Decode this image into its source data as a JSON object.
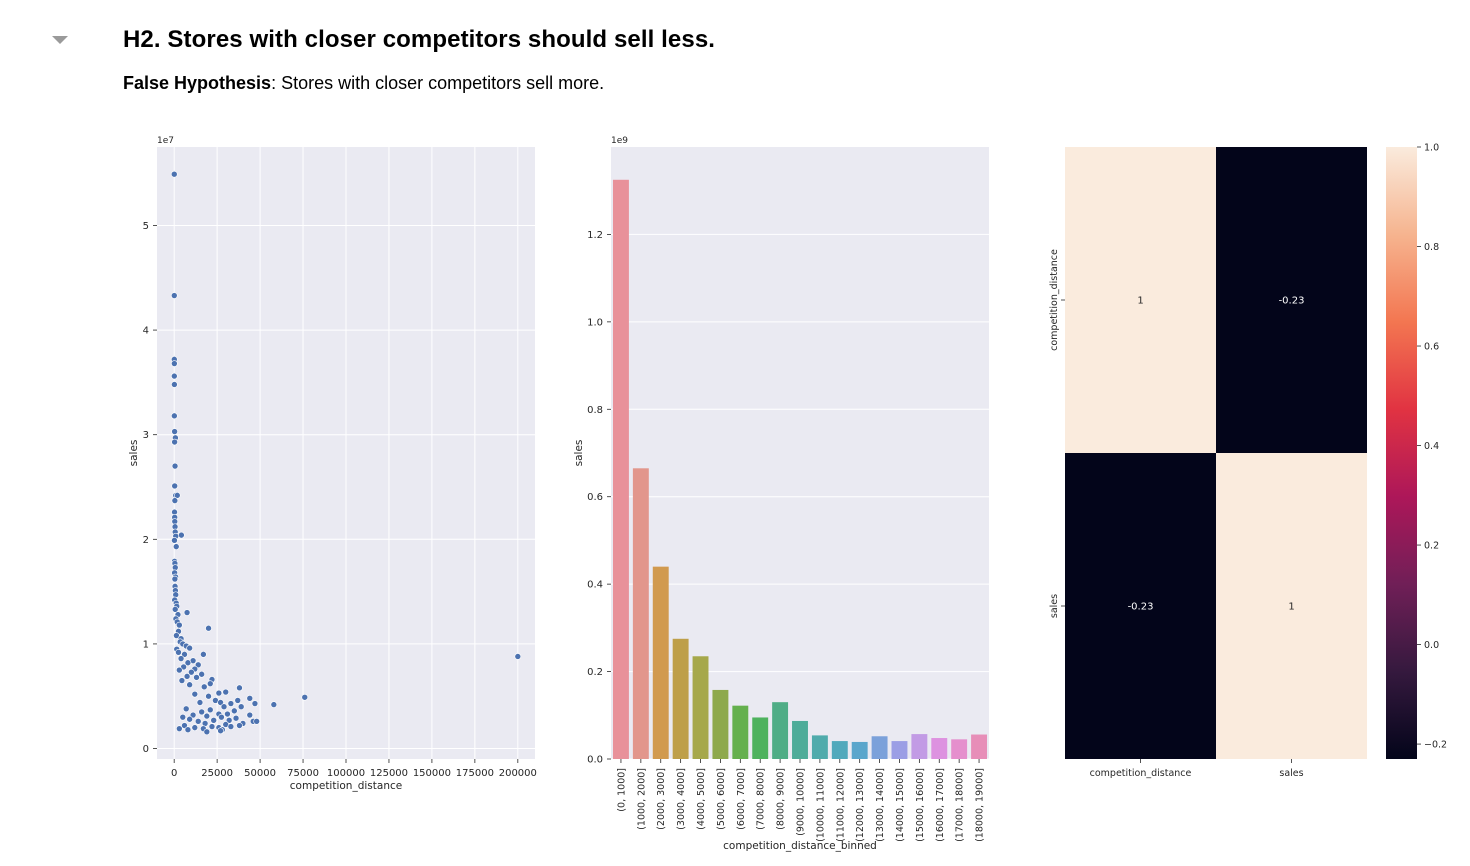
{
  "section": {
    "title": "H2. Stores with closer competitors should sell less.",
    "conclusion_label": "False Hypothesis",
    "conclusion_sep": ":",
    "conclusion_text": " Stores with closer competitors sell more."
  },
  "chart_data": [
    {
      "type": "scatter",
      "xlabel": "competition_distance",
      "ylabel": "sales",
      "y_offset_label": "1e7",
      "xlim": [
        -10000,
        210000
      ],
      "ylim": [
        -0.1,
        5.75
      ],
      "xticks": [
        0,
        25000,
        50000,
        75000,
        100000,
        125000,
        150000,
        175000,
        200000
      ],
      "xtick_labels": [
        "0",
        "25000",
        "50000",
        "75000",
        "100000",
        "125000",
        "150000",
        "175000",
        "200000"
      ],
      "yticks": [
        0,
        1,
        2,
        3,
        4,
        5
      ],
      "ytick_labels": [
        "0",
        "1",
        "2",
        "3",
        "4",
        "5"
      ],
      "grid": true,
      "marker_color": "#4c72b0",
      "points": [
        [
          50,
          5.49
        ],
        [
          60,
          4.33
        ],
        [
          70,
          3.72
        ],
        [
          100,
          3.68
        ],
        [
          80,
          3.56
        ],
        [
          120,
          3.48
        ],
        [
          100,
          3.18
        ],
        [
          250,
          3.03
        ],
        [
          700,
          2.97
        ],
        [
          250,
          2.93
        ],
        [
          500,
          2.7
        ],
        [
          300,
          2.51
        ],
        [
          900,
          2.42
        ],
        [
          1800,
          2.42
        ],
        [
          400,
          2.37
        ],
        [
          200,
          2.26
        ],
        [
          300,
          2.21
        ],
        [
          350,
          2.17
        ],
        [
          500,
          2.12
        ],
        [
          600,
          2.07
        ],
        [
          4200,
          2.04
        ],
        [
          900,
          2.03
        ],
        [
          150,
          1.99
        ],
        [
          1200,
          1.93
        ],
        [
          220,
          1.79
        ],
        [
          420,
          1.77
        ],
        [
          620,
          1.73
        ],
        [
          250,
          1.68
        ],
        [
          800,
          1.64
        ],
        [
          400,
          1.62
        ],
        [
          500,
          1.55
        ],
        [
          700,
          1.51
        ],
        [
          900,
          1.47
        ],
        [
          300,
          1.42
        ],
        [
          1200,
          1.39
        ],
        [
          1500,
          1.36
        ],
        [
          600,
          1.33
        ],
        [
          7500,
          1.3
        ],
        [
          2200,
          1.28
        ],
        [
          1000,
          1.24
        ],
        [
          1800,
          1.21
        ],
        [
          3000,
          1.18
        ],
        [
          20000,
          1.15
        ],
        [
          2500,
          1.12
        ],
        [
          1300,
          1.08
        ],
        [
          4000,
          1.05
        ],
        [
          3500,
          1.02
        ],
        [
          5000,
          1.0
        ],
        [
          7000,
          0.98
        ],
        [
          9000,
          0.96
        ],
        [
          1500,
          0.95
        ],
        [
          2500,
          0.92
        ],
        [
          6000,
          0.9
        ],
        [
          17000,
          0.9
        ],
        [
          200000,
          0.88
        ],
        [
          4000,
          0.86
        ],
        [
          11000,
          0.84
        ],
        [
          8000,
          0.82
        ],
        [
          14000,
          0.8
        ],
        [
          5500,
          0.78
        ],
        [
          12000,
          0.76
        ],
        [
          3000,
          0.75
        ],
        [
          10000,
          0.73
        ],
        [
          16000,
          0.71
        ],
        [
          7500,
          0.69
        ],
        [
          13000,
          0.68
        ],
        [
          22000,
          0.66
        ],
        [
          4500,
          0.65
        ],
        [
          21000,
          0.62
        ],
        [
          9000,
          0.61
        ],
        [
          17500,
          0.59
        ],
        [
          38000,
          0.58
        ],
        [
          30000,
          0.54
        ],
        [
          26000,
          0.53
        ],
        [
          12000,
          0.52
        ],
        [
          20000,
          0.5
        ],
        [
          76000,
          0.49
        ],
        [
          44000,
          0.48
        ],
        [
          37000,
          0.46
        ],
        [
          24000,
          0.46
        ],
        [
          15000,
          0.44
        ],
        [
          27000,
          0.44
        ],
        [
          33000,
          0.43
        ],
        [
          47000,
          0.43
        ],
        [
          58000,
          0.42
        ],
        [
          29000,
          0.4
        ],
        [
          39000,
          0.4
        ],
        [
          7000,
          0.38
        ],
        [
          21000,
          0.37
        ],
        [
          35000,
          0.36
        ],
        [
          16000,
          0.35
        ],
        [
          26000,
          0.33
        ],
        [
          31000,
          0.33
        ],
        [
          11000,
          0.32
        ],
        [
          44000,
          0.32
        ],
        [
          19000,
          0.31
        ],
        [
          5000,
          0.3
        ],
        [
          27500,
          0.3
        ],
        [
          36000,
          0.29
        ],
        [
          9000,
          0.28
        ],
        [
          23000,
          0.27
        ],
        [
          32000,
          0.27
        ],
        [
          46000,
          0.26
        ],
        [
          14000,
          0.26
        ],
        [
          48000,
          0.26
        ],
        [
          40000,
          0.24
        ],
        [
          18000,
          0.24
        ],
        [
          30000,
          0.23
        ],
        [
          6000,
          0.22
        ],
        [
          38000,
          0.22
        ],
        [
          22000,
          0.21
        ],
        [
          33000,
          0.21
        ],
        [
          12000,
          0.2
        ],
        [
          26000,
          0.2
        ],
        [
          3000,
          0.19
        ],
        [
          17000,
          0.19
        ],
        [
          28000,
          0.18
        ],
        [
          8000,
          0.18
        ],
        [
          19000,
          0.16
        ],
        [
          27000,
          0.17
        ]
      ]
    },
    {
      "type": "bar",
      "xlabel": "competition_distance_binned",
      "ylabel": "sales",
      "y_offset_label": "1e9",
      "ylim": [
        0,
        1.4
      ],
      "yticks": [
        0,
        0.2,
        0.4,
        0.6,
        0.8,
        1.0,
        1.2
      ],
      "ytick_labels": [
        "0.0",
        "0.2",
        "0.4",
        "0.6",
        "0.8",
        "1.0",
        "1.2"
      ],
      "grid": true,
      "categories": [
        "(0, 1000]",
        "(1000, 2000]",
        "(2000, 3000]",
        "(3000, 4000]",
        "(4000, 5000]",
        "(5000, 6000]",
        "(6000, 7000]",
        "(7000, 8000]",
        "(8000, 9000]",
        "(9000, 10000]",
        "(10000, 11000]",
        "(11000, 12000]",
        "(12000, 13000]",
        "(13000, 14000]",
        "(14000, 15000]",
        "(15000, 16000]",
        "(16000, 17000]",
        "(17000, 18000]",
        "(18000, 19000]"
      ],
      "values": [
        1.325,
        0.665,
        0.44,
        0.275,
        0.235,
        0.158,
        0.122,
        0.095,
        0.13,
        0.087,
        0.054,
        0.041,
        0.039,
        0.052,
        0.041,
        0.057,
        0.048,
        0.045,
        0.056
      ],
      "colors": [
        "#e8919a",
        "#e2968c",
        "#d19a4f",
        "#be9f49",
        "#a6a84b",
        "#8ea94c",
        "#65b04e",
        "#4eb25e",
        "#4fad86",
        "#4eac99",
        "#50abac",
        "#51a9bc",
        "#5aa6cc",
        "#7ba1da",
        "#9b9ee5",
        "#c29be5",
        "#dd92e0",
        "#e58fcd",
        "#e78eb8"
      ]
    },
    {
      "type": "heatmap",
      "rows": [
        "competition_distance",
        "sales"
      ],
      "columns": [
        "competition_distance",
        "sales"
      ],
      "values": [
        [
          1,
          -0.23
        ],
        [
          -0.23,
          1
        ]
      ],
      "annotations": [
        [
          "1",
          "-0.23"
        ],
        [
          "-0.23",
          "1"
        ]
      ],
      "colorbar": {
        "ticks": [
          1.0,
          0.8,
          0.6,
          0.4,
          0.2,
          0.0,
          -0.2
        ],
        "tick_labels": [
          "1.0",
          "0.8",
          "0.6",
          "0.4",
          "0.2",
          "0.0",
          "−0.2"
        ],
        "range": [
          -0.23,
          1.0
        ],
        "colormap": "rocket",
        "colors": [
          "#03051a",
          "#35193e",
          "#701f57",
          "#ad1759",
          "#e13342",
          "#f37651",
          "#f6b48f",
          "#faebdd"
        ]
      }
    }
  ]
}
